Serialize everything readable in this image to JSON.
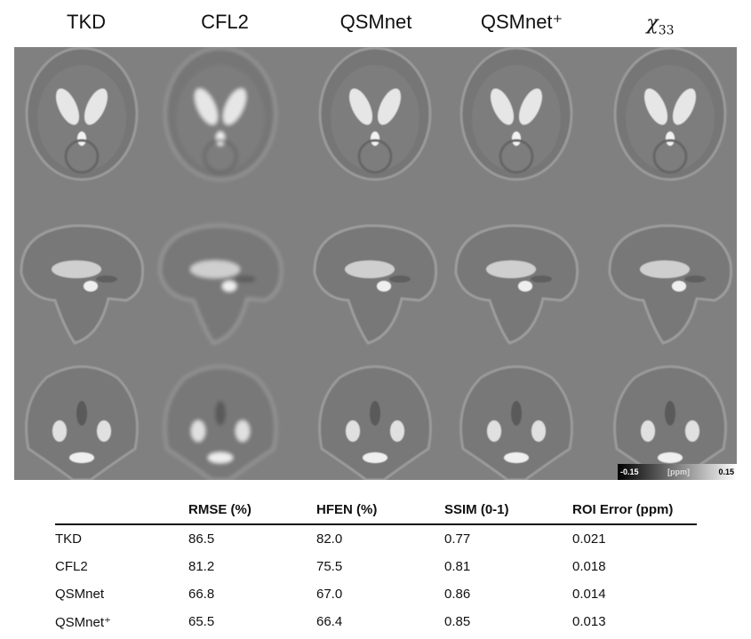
{
  "columns": [
    "TKD",
    "CFL2",
    "QSMnet",
    "QSMnet⁺"
  ],
  "reference_column": {
    "base": "χ",
    "subscript": "33"
  },
  "colorbar": {
    "min": "-0.15",
    "unit": "[ppm]",
    "max": "0.15"
  },
  "table": {
    "headers": [
      "",
      "RMSE (%)",
      "HFEN (%)",
      "SSIM (0-1)",
      "ROI Error (ppm)"
    ],
    "rows": [
      [
        "TKD",
        "86.5",
        "82.0",
        "0.77",
        "0.021"
      ],
      [
        "CFL2",
        "81.2",
        "75.5",
        "0.81",
        "0.018"
      ],
      [
        "QSMnet",
        "66.8",
        "67.0",
        "0.86",
        "0.014"
      ],
      [
        "QSMnet⁺",
        "65.5",
        "66.4",
        "0.85",
        "0.013"
      ]
    ]
  },
  "colors": {
    "panel_background": "#808080"
  }
}
